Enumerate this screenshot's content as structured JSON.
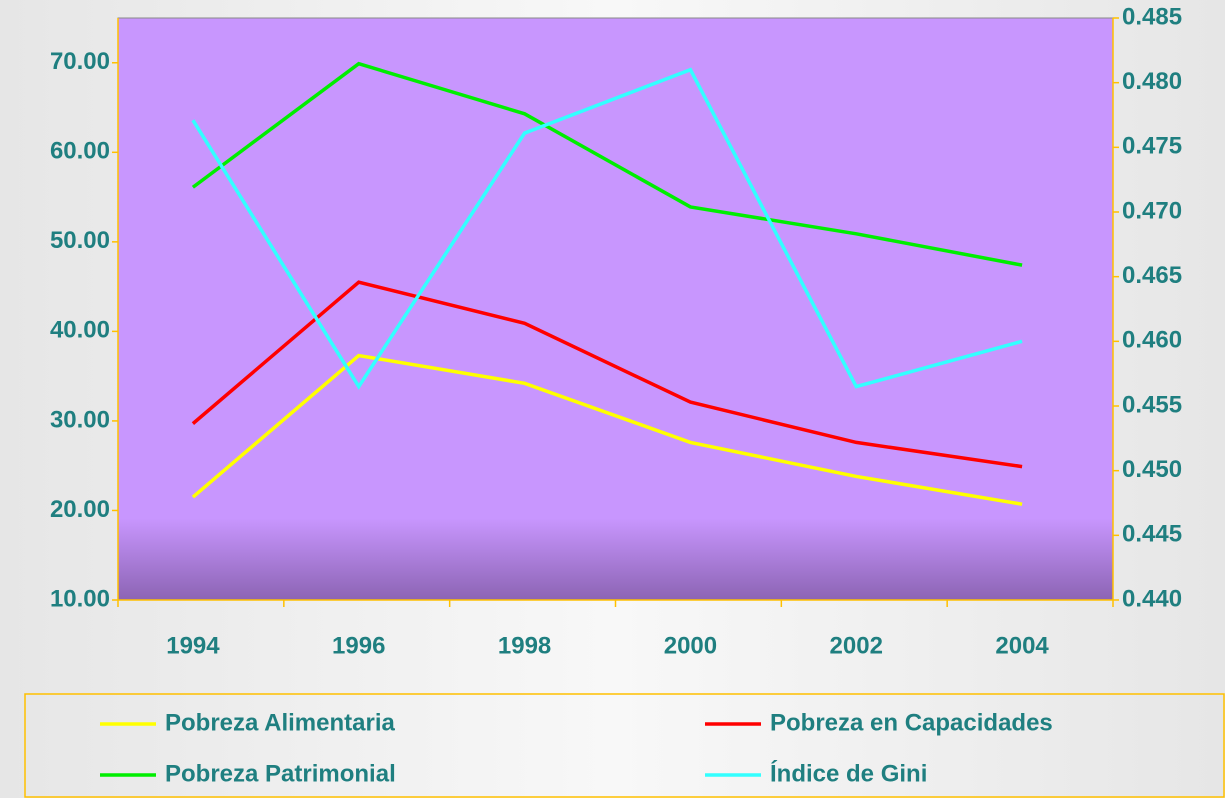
{
  "chart_data": {
    "type": "line",
    "categories": [
      "1994",
      "1996",
      "1998",
      "2000",
      "2002",
      "2004"
    ],
    "series": [
      {
        "name": "Pobreza Alimentaria",
        "color": "#ffff00",
        "values": [
          21.5,
          37.3,
          34.2,
          27.6,
          23.8,
          20.7
        ]
      },
      {
        "name": "Pobreza en Capacidades",
        "color": "#ff0000",
        "values": [
          29.7,
          45.5,
          40.9,
          32.1,
          27.6,
          24.9
        ]
      },
      {
        "name": "Pobreza Patrimonial",
        "color": "#00ee00",
        "values": [
          56.1,
          69.9,
          64.3,
          53.9,
          50.9,
          47.4
        ]
      },
      {
        "name": "Índice de Gini",
        "color": "#33ffff",
        "axis": "y2",
        "values": [
          0.4771,
          0.4565,
          0.4761,
          0.481,
          0.4565,
          0.46
        ]
      }
    ],
    "ylim": [
      10,
      75
    ],
    "yticks": [
      {
        "value": 10,
        "label": "10.00"
      },
      {
        "value": 20,
        "label": "20.00"
      },
      {
        "value": 30,
        "label": "30.00"
      },
      {
        "value": 40,
        "label": "40.00"
      },
      {
        "value": 50,
        "label": "50.00"
      },
      {
        "value": 60,
        "label": "60.00"
      },
      {
        "value": 70,
        "label": "70.00"
      }
    ],
    "y2lim": [
      0.44,
      0.485
    ],
    "y2ticks": [
      {
        "value": 0.44,
        "label": "0.440"
      },
      0.445,
      {
        "value": 0.45,
        "label": "0.450"
      },
      0.455,
      {
        "value": 0.46,
        "label": "0.460"
      },
      0.465,
      {
        "value": 0.47,
        "label": "0.470"
      },
      0.475,
      {
        "value": 0.48,
        "label": "0.480"
      },
      0.485
    ],
    "legend": "bottom"
  }
}
